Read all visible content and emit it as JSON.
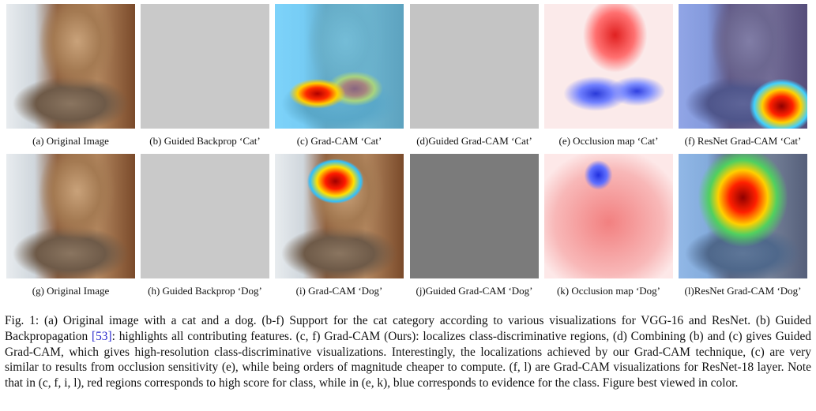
{
  "figure": {
    "panels": [
      [
        "(a) Original Image",
        "(b) Guided Backprop ‘Cat’",
        "(c) Grad-CAM ‘Cat’",
        "(d)Guided Grad-CAM ‘Cat’",
        "(e) Occlusion map ‘Cat’",
        "(f) ResNet Grad-CAM ‘Cat’"
      ],
      [
        "(g) Original Image",
        "(h) Guided Backprop ‘Dog’",
        "(i) Grad-CAM ‘Dog’",
        "(j)Guided Grad-CAM ‘Dog’",
        "(k) Occlusion map ‘Dog’",
        "(l)ResNet Grad-CAM ‘Dog’"
      ]
    ],
    "caption": {
      "before": "Fig. 1: (a) Original image with a cat and a dog. (b-f) Support for the cat category according to various visualizations for VGG-16 and ResNet. (b) Guided Backpropagation ",
      "citation": "[53]",
      "after": ": highlights all contributing features. (c, f) Grad-CAM (Ours): localizes class-discriminative regions, (d) Combining (b) and (c) gives Guided Grad-CAM, which gives high-resolution class-discriminative visualizations. Interestingly, the localizations achieved by our Grad-CAM technique, (c) are very similar to results from occlusion sensitivity (e), while being orders of magnitude cheaper to compute. (f, l) are Grad-CAM visualizations for ResNet-18 layer. Note that in (c, f, i, l), red regions corresponds to high score for class, while in (e, k), blue corresponds to evidence for the class. Figure best viewed in color."
    }
  }
}
